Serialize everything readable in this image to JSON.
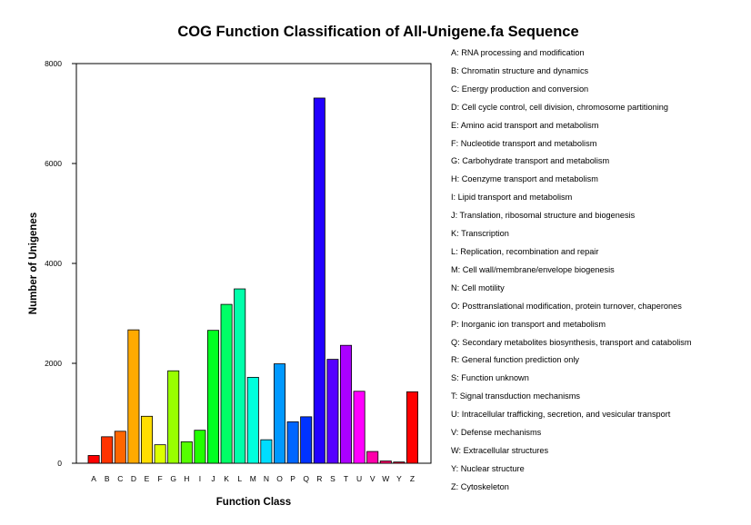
{
  "chart_data": {
    "type": "bar",
    "title": "COG Function Classification of All-Unigene.fa Sequence",
    "xlabel": "Function Class",
    "ylabel": "Number of Unigenes",
    "ylim": [
      0,
      8000
    ],
    "yticks": [
      "0",
      "2000",
      "4000",
      "6000",
      "8000"
    ],
    "categories": [
      "A",
      "B",
      "C",
      "D",
      "E",
      "F",
      "G",
      "H",
      "I",
      "J",
      "K",
      "L",
      "M",
      "N",
      "O",
      "P",
      "Q",
      "R",
      "S",
      "T",
      "U",
      "V",
      "W",
      "Y",
      "Z"
    ],
    "values": [
      155,
      530,
      640,
      2670,
      940,
      370,
      1850,
      430,
      660,
      2660,
      3180,
      3490,
      1720,
      470,
      1990,
      830,
      930,
      7310,
      2080,
      2360,
      1440,
      235,
      45,
      25,
      1430
    ],
    "colors": [
      "#FF0000",
      "#FF3300",
      "#FF6600",
      "#FFAA00",
      "#FFDD00",
      "#DDFF00",
      "#99FF00",
      "#55FF00",
      "#22FF00",
      "#00FF22",
      "#00FF66",
      "#00FFAA",
      "#00FFDD",
      "#00DDFF",
      "#0099FF",
      "#0066FF",
      "#0033FF",
      "#2200FF",
      "#5500FF",
      "#AA00FF",
      "#FF00FF",
      "#FF00AA",
      "#FF0066",
      "#FF0033",
      "#FF0000"
    ],
    "legend": [
      "A: RNA processing and modification",
      "B: Chromatin structure and dynamics",
      "C: Energy production and conversion",
      "D: Cell cycle control, cell division, chromosome partitioning",
      "E: Amino acid transport and metabolism",
      "F: Nucleotide transport and metabolism",
      "G: Carbohydrate transport and metabolism",
      "H: Coenzyme transport and metabolism",
      "I: Lipid transport and metabolism",
      "J: Translation, ribosomal structure and biogenesis",
      "K: Transcription",
      "L: Replication, recombination and repair",
      "M: Cell wall/membrane/envelope biogenesis",
      "N: Cell motility",
      "O: Posttranslational modification, protein turnover, chaperones",
      "P: Inorganic ion transport and metabolism",
      "Q: Secondary metabolites biosynthesis, transport and catabolism",
      "R: General function prediction only",
      "S: Function unknown",
      "T: Signal transduction mechanisms",
      "U: Intracellular trafficking, secretion, and vesicular transport",
      "V: Defense mechanisms",
      "W: Extracellular structures",
      "Y: Nuclear structure",
      "Z: Cytoskeleton"
    ]
  }
}
